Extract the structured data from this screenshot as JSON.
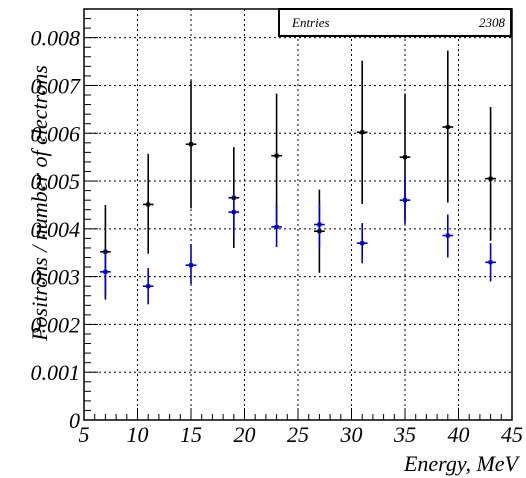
{
  "chart_data": {
    "type": "scatter",
    "title": "",
    "xlabel": "Energy, MeV",
    "ylabel": "Positrons / number of electrons",
    "xlim": [
      5,
      45
    ],
    "ylim": [
      0,
      0.0086
    ],
    "grid": true,
    "x_ticks": [
      "5",
      "10",
      "15",
      "20",
      "25",
      "30",
      "35",
      "40",
      "45"
    ],
    "y_ticks": [
      "0",
      "0.001",
      "0.002",
      "0.003",
      "0.004",
      "0.005",
      "0.006",
      "0.007",
      "0.008"
    ],
    "series": [
      {
        "color": "#000000",
        "x": [
          7,
          11,
          15,
          19,
          23,
          27,
          31,
          35,
          39,
          43
        ],
        "x_err": 0.5,
        "y": [
          0.00352,
          0.00451,
          0.00577,
          0.00465,
          0.00553,
          0.00395,
          0.00602,
          0.0055,
          0.00613,
          0.00505
        ],
        "y_low": [
          0.00252,
          0.00348,
          0.00443,
          0.0036,
          0.00413,
          0.00308,
          0.00452,
          0.00417,
          0.00455,
          0.00375
        ],
        "y_high": [
          0.0045,
          0.00557,
          0.0071,
          0.00571,
          0.00683,
          0.00482,
          0.00752,
          0.00683,
          0.00773,
          0.00655
        ]
      },
      {
        "color": "#0000cc",
        "x": [
          7,
          11,
          15,
          19,
          23,
          27,
          31,
          35,
          39,
          43
        ],
        "x_err": 0.5,
        "y": [
          0.0031,
          0.0028,
          0.00324,
          0.00435,
          0.00404,
          0.00409,
          0.0037,
          0.0046,
          0.00386,
          0.0033
        ],
        "y_low": [
          0.0026,
          0.00242,
          0.00284,
          0.00385,
          0.00362,
          0.00362,
          0.00328,
          0.0041,
          0.0034,
          0.0029
        ],
        "y_high": [
          0.00356,
          0.00318,
          0.00368,
          0.0048,
          0.0045,
          0.00455,
          0.00412,
          0.00506,
          0.0043,
          0.0037
        ]
      }
    ]
  },
  "stats_box": {
    "label": "Entries",
    "value": "2308"
  }
}
